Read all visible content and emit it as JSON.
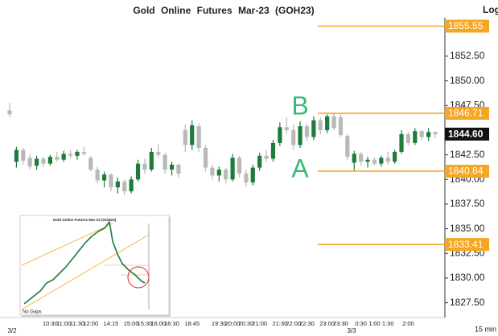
{
  "chart_data": {
    "type": "candlestick",
    "title": "Gold Online Futures Mar-23 (GOH23)",
    "scale_label": "Log",
    "interval_label": "15 min",
    "date_labels": [
      "3/2",
      "3/3"
    ],
    "categories": [
      null,
      null,
      null,
      null,
      null,
      null,
      "10:30",
      null,
      "11:00",
      null,
      "11:30",
      null,
      "12:00",
      null,
      null,
      "14:15",
      null,
      null,
      "15:00",
      null,
      "15:30",
      null,
      "16:00",
      null,
      "16:30",
      null,
      null,
      "18:45",
      null,
      null,
      null,
      "19:30",
      null,
      "20:00",
      null,
      "20:30",
      null,
      "21:00",
      null,
      null,
      "21:30",
      null,
      "22:00",
      null,
      "22:30",
      null,
      null,
      "23:00",
      null,
      "23:30",
      null,
      null,
      "0:30",
      null,
      "1:00",
      null,
      "1:30",
      null,
      null,
      "2:00",
      null,
      null,
      null,
      null
    ],
    "open": [
      1847.0,
      1841.8,
      1843.0,
      1842.2,
      1841.4,
      1842.1,
      1841.6,
      1842.3,
      1842.0,
      1842.6,
      1842.4,
      1842.8,
      1842.2,
      1841.0,
      1839.9,
      1840.5,
      1839.2,
      1839.8,
      1838.8,
      1840.0,
      1841.6,
      1841.0,
      1842.8,
      1842.5,
      1841.0,
      1841.5,
      1845.0,
      1843.5,
      1845.4,
      1843.2,
      1841.2,
      1840.4,
      1841.0,
      1840.0,
      1842.2,
      1840.6,
      1839.7,
      1841.2,
      1842.4,
      1842.1,
      1843.7,
      1845.3,
      1845.0,
      1843.5,
      1845.4,
      1844.3,
      1846.0,
      1845.0,
      1846.4,
      1846.3,
      1844.4,
      1841.7,
      1842.6,
      1841.8,
      1842.0,
      1841.6,
      1842.2,
      1841.8,
      1842.8,
      1844.6,
      1843.7,
      1844.9,
      1844.3,
      1844.8
    ],
    "high": [
      1847.8,
      1843.3,
      1843.2,
      1842.6,
      1842.4,
      1842.3,
      1842.5,
      1842.8,
      1842.9,
      1843.0,
      1843.0,
      1843.3,
      1842.4,
      1841.3,
      1840.8,
      1840.6,
      1840.2,
      1840.0,
      1840.3,
      1842.0,
      1842.1,
      1843.2,
      1843.6,
      1842.7,
      1841.8,
      1841.6,
      1845.6,
      1846.0,
      1845.7,
      1843.5,
      1841.5,
      1841.3,
      1841.2,
      1842.6,
      1842.4,
      1841.0,
      1841.5,
      1842.7,
      1843.0,
      1844.0,
      1845.8,
      1846.3,
      1845.6,
      1845.9,
      1845.7,
      1846.4,
      1846.3,
      1846.6,
      1846.7,
      1846.6,
      1844.6,
      1842.9,
      1842.8,
      1842.3,
      1842.2,
      1842.4,
      1842.8,
      1843.0,
      1845.0,
      1844.8,
      1845.2,
      1845.0,
      1845.2,
      1844.9
    ],
    "low": [
      1846.3,
      1841.2,
      1841.5,
      1841.0,
      1841.0,
      1841.3,
      1841.4,
      1841.8,
      1841.8,
      1842.1,
      1842.0,
      1842.4,
      1840.8,
      1839.6,
      1839.2,
      1838.8,
      1838.6,
      1838.4,
      1838.6,
      1839.8,
      1840.6,
      1840.8,
      1842.2,
      1840.6,
      1840.4,
      1840.2,
      1842.8,
      1843.0,
      1842.8,
      1840.8,
      1840.0,
      1839.8,
      1839.6,
      1839.8,
      1840.2,
      1839.3,
      1839.4,
      1840.9,
      1841.8,
      1841.8,
      1843.4,
      1844.6,
      1843.0,
      1843.2,
      1843.9,
      1844.0,
      1844.6,
      1844.7,
      1845.0,
      1844.3,
      1842.0,
      1840.8,
      1841.4,
      1841.2,
      1841.4,
      1841.3,
      1841.5,
      1841.6,
      1842.6,
      1843.4,
      1843.5,
      1844.0,
      1843.9,
      1844.2
    ],
    "close": [
      1846.6,
      1843.0,
      1841.9,
      1841.3,
      1842.1,
      1841.6,
      1842.3,
      1842.0,
      1842.6,
      1842.4,
      1842.8,
      1842.6,
      1841.0,
      1839.9,
      1840.5,
      1839.2,
      1839.8,
      1838.8,
      1840.0,
      1841.6,
      1841.0,
      1842.8,
      1842.5,
      1841.0,
      1841.5,
      1840.6,
      1843.5,
      1845.5,
      1843.2,
      1841.2,
      1840.4,
      1841.0,
      1840.0,
      1842.2,
      1840.6,
      1839.7,
      1841.2,
      1842.4,
      1842.1,
      1843.7,
      1845.3,
      1845.0,
      1843.5,
      1845.4,
      1844.3,
      1846.0,
      1845.0,
      1846.4,
      1845.2,
      1844.5,
      1842.3,
      1842.6,
      1841.8,
      1842.0,
      1841.6,
      1842.2,
      1841.8,
      1842.8,
      1844.6,
      1843.7,
      1844.9,
      1844.3,
      1844.8,
      1844.6
    ],
    "up_color": "#1f7a3c",
    "down_color": "#b9b9b9",
    "ylim": [
      1826.0,
      1858.2
    ],
    "yticks": [
      {
        "value": 1827.5,
        "label": "1827.50"
      },
      {
        "value": 1830,
        "label": "1830.00"
      },
      {
        "value": 1832.5,
        "label": "1832.50"
      },
      {
        "value": 1835,
        "label": "1835.00"
      },
      {
        "value": 1837.5,
        "label": "1837.50"
      },
      {
        "value": 1840,
        "label": "1840.00"
      },
      {
        "value": 1842.5,
        "label": "1842.50"
      },
      {
        "value": 1847.5,
        "label": "1847.50"
      },
      {
        "value": 1850,
        "label": "1850.00"
      },
      {
        "value": 1852.5,
        "label": "1852.50"
      }
    ],
    "levels": [
      {
        "value": 1855.55,
        "label": "1855.55"
      },
      {
        "value": 1846.71,
        "label": "1846.71"
      },
      {
        "value": 1840.84,
        "label": "1840.84"
      },
      {
        "value": 1833.41,
        "label": "1833.41"
      }
    ],
    "level_color": "#f5a623",
    "last_price": {
      "value": 1844.6,
      "label": "1844.60"
    },
    "annotations": [
      "B",
      "A"
    ],
    "inset": {
      "title": "Gold Online Futures Mar-23 (GOH23)",
      "note": "No Gaps"
    }
  }
}
